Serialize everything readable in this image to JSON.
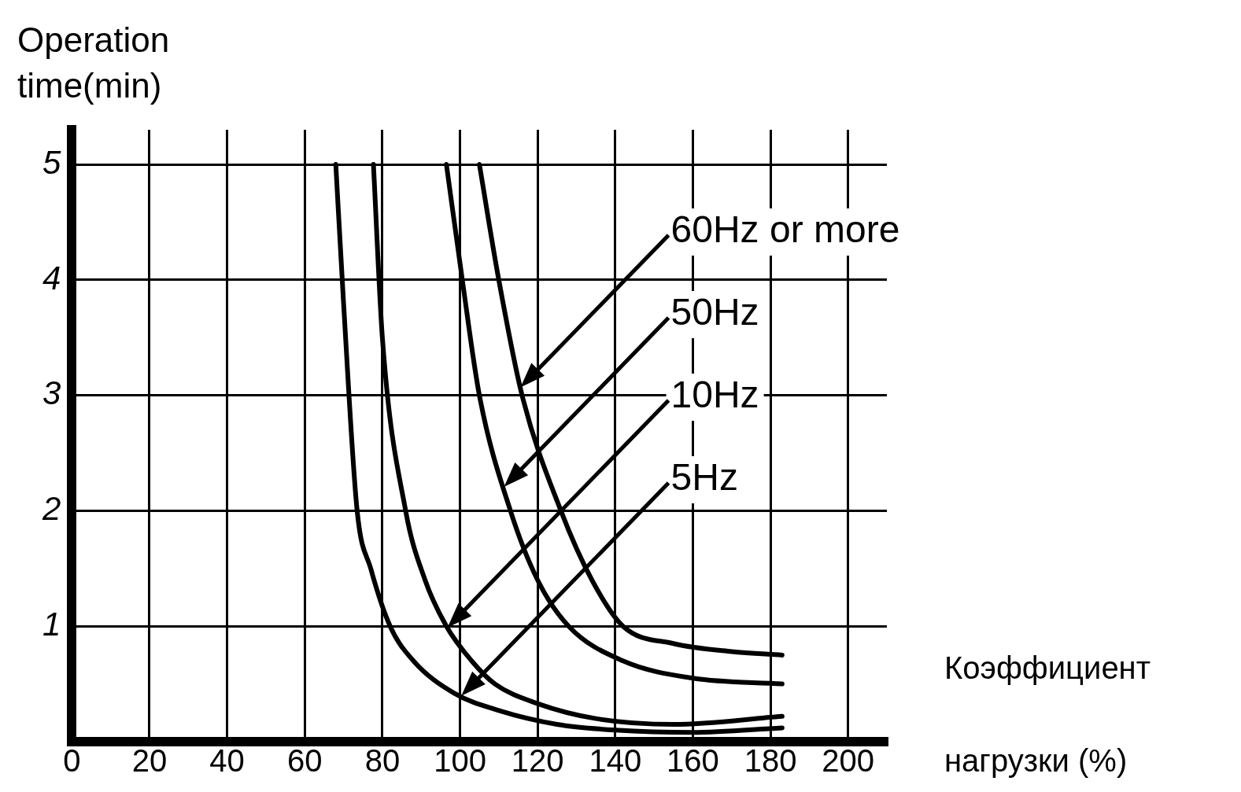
{
  "chart_data": {
    "type": "line",
    "ylabel": "Operation time(min)",
    "xlabel": "Коэффициент нагрузки (%)",
    "xlim": [
      0,
      210
    ],
    "xticks": [
      0,
      20,
      40,
      60,
      80,
      100,
      120,
      140,
      160,
      180,
      200
    ],
    "ylim": [
      0,
      5.3
    ],
    "yticks": [
      1,
      2,
      3,
      4,
      5
    ],
    "grid": true,
    "legend": false,
    "marker": "none",
    "line_style": "solid",
    "series": [
      {
        "color": "#000000",
        "x": [
          105,
          110,
          116,
          126,
          134,
          142,
          155,
          170,
          183
        ],
        "values": [
          5,
          4,
          3,
          2,
          1.4,
          1,
          0.85,
          0.78,
          0.75
        ]
      },
      {
        "color": "#000000",
        "x": [
          96.5,
          100.6,
          105,
          113,
          120,
          128,
          142,
          160,
          183
        ],
        "values": [
          5,
          4,
          3,
          2,
          1.4,
          1,
          0.7,
          0.55,
          0.5
        ]
      },
      {
        "color": "#000000",
        "x": [
          77.7,
          80,
          86,
          91,
          96.5,
          103,
          109,
          120,
          135,
          155,
          183
        ],
        "values": [
          5,
          3.5,
          2,
          1.4,
          1,
          0.7,
          0.5,
          0.33,
          0.2,
          0.15,
          0.22
        ]
      },
      {
        "color": "#000000",
        "x": [
          68,
          70,
          73.5,
          77,
          82,
          88,
          98.5,
          110,
          125,
          140,
          160,
          183
        ],
        "values": [
          5,
          3.8,
          2,
          1.5,
          1,
          0.7,
          0.42,
          0.27,
          0.15,
          0.1,
          0.08,
          0.12
        ]
      }
    ],
    "annotations": [
      "60Hz or more",
      "50Hz",
      "10Hz",
      "5Hz"
    ]
  }
}
